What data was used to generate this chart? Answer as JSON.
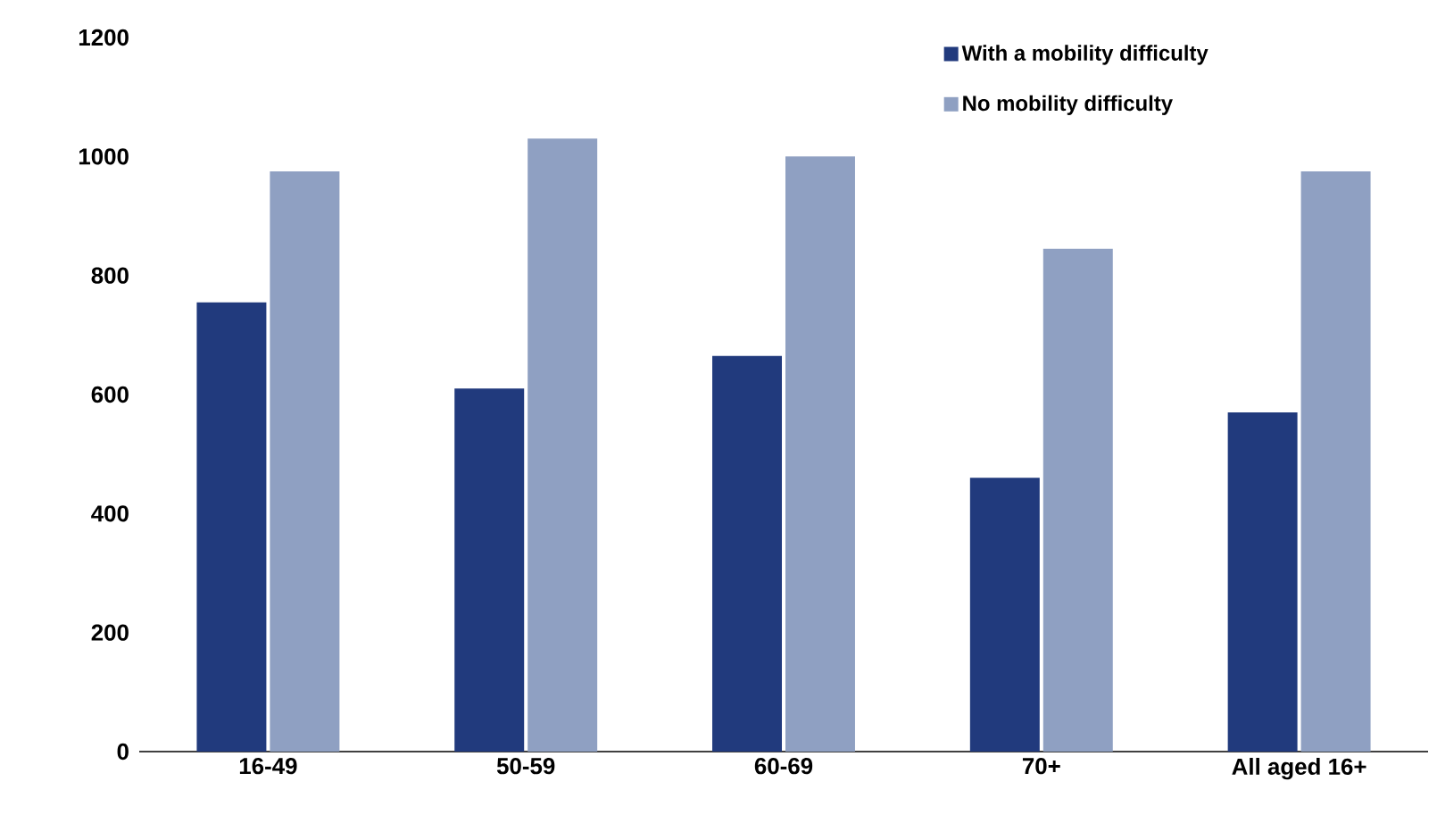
{
  "chart_data": {
    "type": "bar",
    "categories": [
      "16-49",
      "50-59",
      "60-69",
      "70+",
      "All aged 16+"
    ],
    "series": [
      {
        "name": "With a mobility difficulty",
        "color": "#213a7d",
        "values": [
          755,
          610,
          665,
          460,
          570
        ]
      },
      {
        "name": "No mobility difficulty",
        "color": "#8fa0c2",
        "values": [
          975,
          1030,
          1000,
          845,
          975
        ]
      }
    ],
    "ylim": [
      0,
      1200
    ],
    "yticks": [
      0,
      200,
      400,
      600,
      800,
      1000,
      1200
    ],
    "grid": false,
    "legend": "top right"
  }
}
